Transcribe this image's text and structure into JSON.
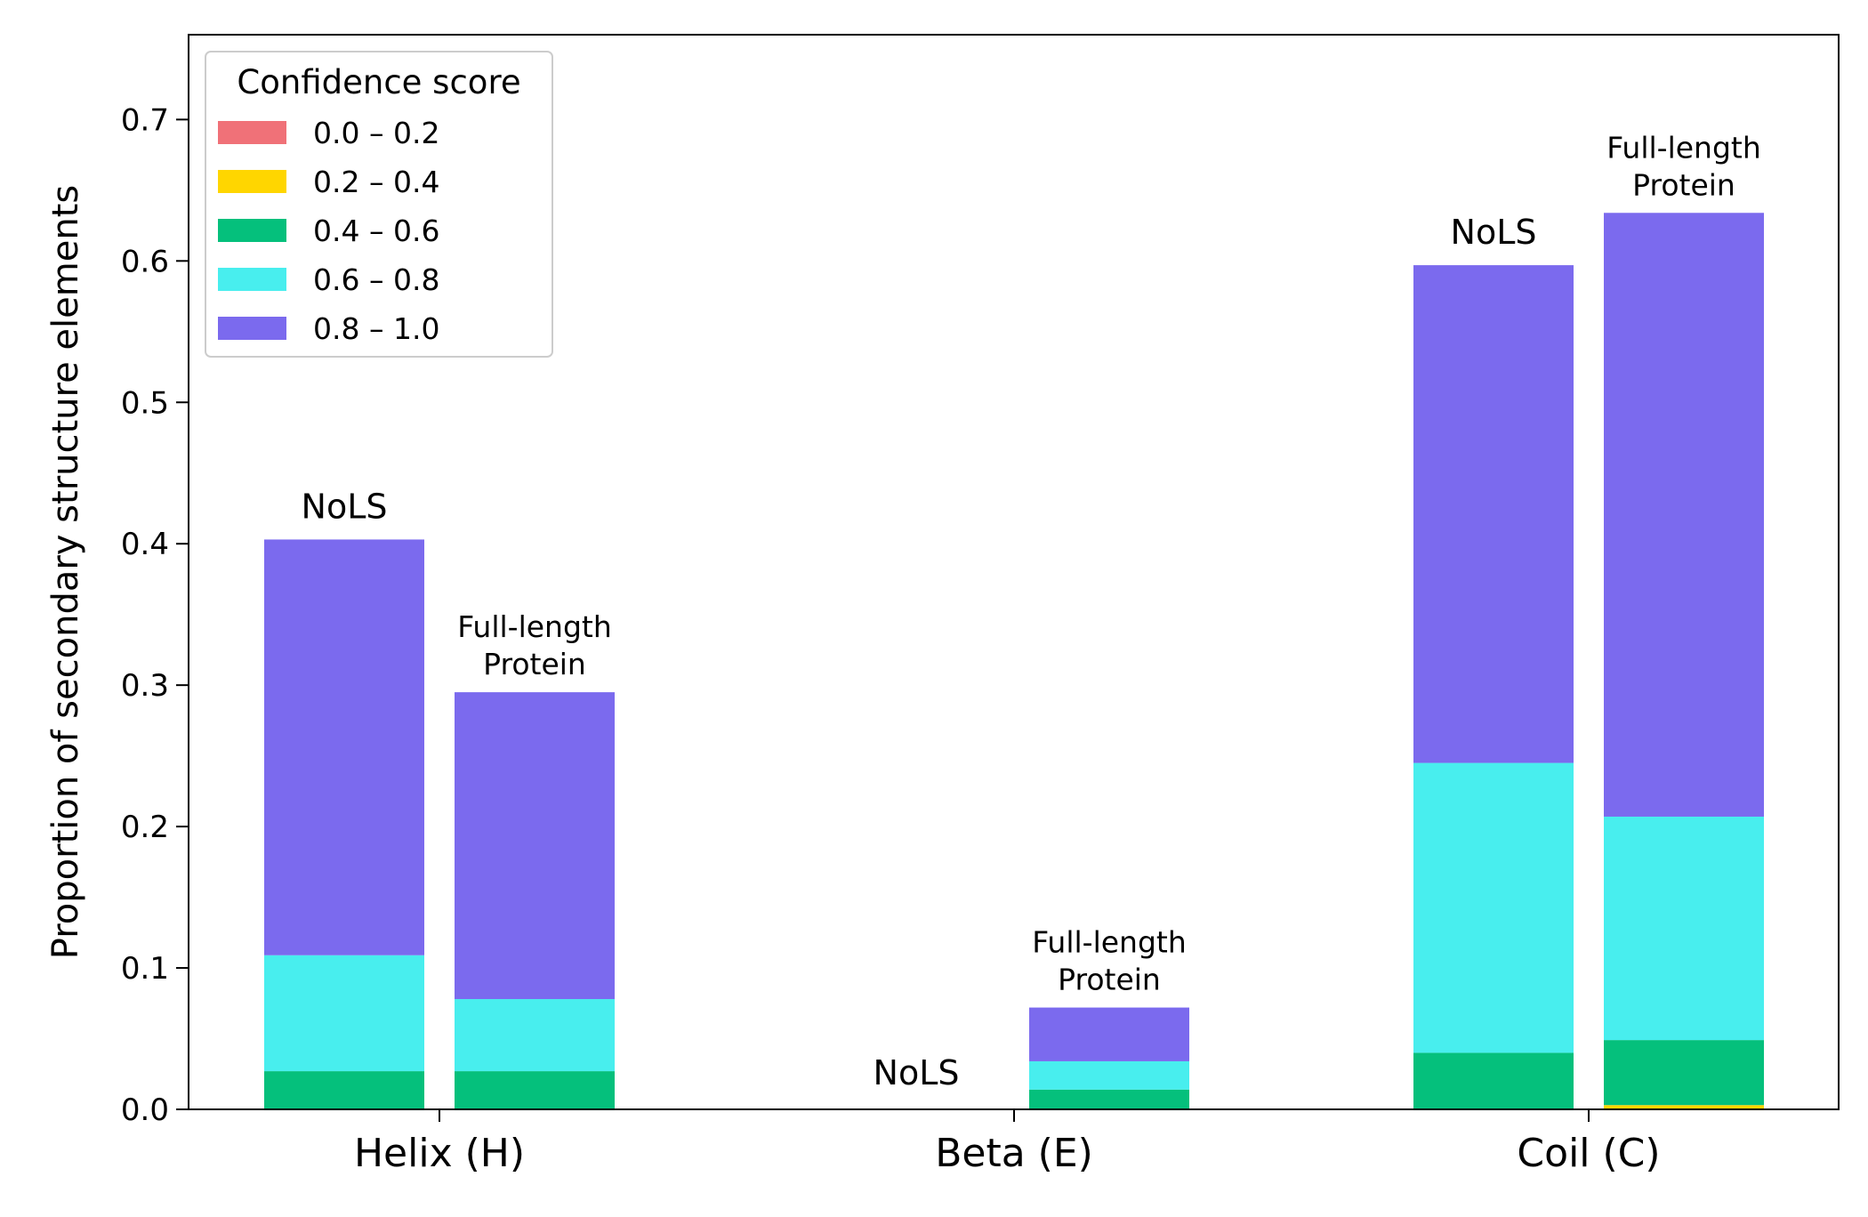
{
  "chart_data": {
    "type": "bar",
    "stacked": true,
    "ylabel": "Proportion of secondary structure elements",
    "ylim": [
      0,
      0.76
    ],
    "yticks": [
      "0.0",
      "0.1",
      "0.2",
      "0.3",
      "0.4",
      "0.5",
      "0.6",
      "0.7"
    ],
    "categories": [
      "Helix (H)",
      "Beta (E)",
      "Coil (C)"
    ],
    "legend": {
      "title": "Confidence score",
      "position": "top-left",
      "entries": [
        {
          "label": "0.0 – 0.2",
          "color": "#f07178"
        },
        {
          "label": "0.2 – 0.4",
          "color": "#ffd600"
        },
        {
          "label": "0.4 – 0.6",
          "color": "#05c07c"
        },
        {
          "label": "0.6 – 0.8",
          "color": "#48eeee"
        },
        {
          "label": "0.8 – 1.0",
          "color": "#7b6aee"
        }
      ]
    },
    "groups": [
      {
        "category": "Helix (H)",
        "bars": [
          {
            "name": "NoLS",
            "label": "NoLS",
            "segments": [
              0.0,
              0.0,
              0.027,
              0.082,
              0.294
            ]
          },
          {
            "name": "Full-length Protein",
            "label_lines": [
              "Full-length",
              "Protein"
            ],
            "segments": [
              0.0,
              0.0,
              0.027,
              0.051,
              0.217
            ]
          }
        ]
      },
      {
        "category": "Beta (E)",
        "bars": [
          {
            "name": "NoLS",
            "label": "NoLS",
            "segments": [
              0.0,
              0.0,
              0.0,
              0.0,
              0.0
            ]
          },
          {
            "name": "Full-length Protein",
            "label_lines": [
              "Full-length",
              "Protein"
            ],
            "segments": [
              0.0,
              0.0,
              0.014,
              0.02,
              0.038
            ]
          }
        ]
      },
      {
        "category": "Coil (C)",
        "bars": [
          {
            "name": "NoLS",
            "label": "NoLS",
            "segments": [
              0.0,
              0.0,
              0.04,
              0.205,
              0.352
            ]
          },
          {
            "name": "Full-length Protein",
            "label_lines": [
              "Full-length",
              "Protein"
            ],
            "segments": [
              0.0,
              0.003,
              0.046,
              0.158,
              0.427
            ]
          }
        ]
      }
    ]
  }
}
